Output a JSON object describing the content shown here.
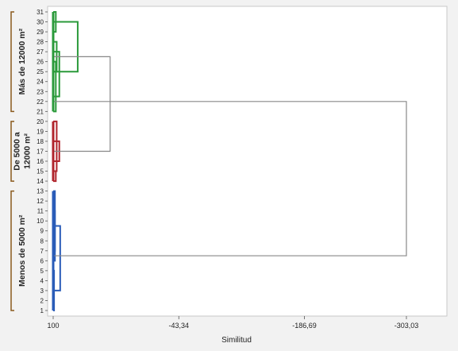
{
  "chart_data": {
    "type": "dendrogram",
    "orientation": "horizontal",
    "xlabel": "Similitud",
    "x_ticks": [
      {
        "value": 100,
        "label": "100"
      },
      {
        "value": -43.34,
        "label": "-43,34"
      },
      {
        "value": -186.69,
        "label": "-186,69"
      },
      {
        "value": -303.03,
        "label": "-303,03"
      }
    ],
    "xlim": [
      100,
      -373
    ],
    "leaves": [
      1,
      2,
      3,
      4,
      5,
      6,
      7,
      8,
      9,
      10,
      11,
      12,
      13,
      14,
      15,
      16,
      17,
      18,
      19,
      20,
      21,
      22,
      23,
      24,
      25,
      26,
      27,
      28,
      29,
      30,
      31
    ],
    "groups": [
      {
        "lines": [
          "Más de 12000 m²"
        ],
        "from_leaf": 21,
        "to_leaf": 31,
        "color": "#2a9a3a"
      },
      {
        "lines": [
          "De 5000 a",
          "12000 m²"
        ],
        "from_leaf": 14,
        "to_leaf": 20,
        "color": "#b0242c"
      },
      {
        "lines": [
          "Menos de 5000 m²"
        ],
        "from_leaf": 1,
        "to_leaf": 13,
        "color": "#2a5cb8"
      }
    ],
    "merges": [
      {
        "leaf_a": 1,
        "leaf_b": 5,
        "similarity": 99,
        "color": "#2a5cb8"
      },
      {
        "leaf_a": 6,
        "leaf_b": 13,
        "similarity": 98,
        "color": "#2a5cb8"
      },
      {
        "leaf_a": 7,
        "leaf_b": 11,
        "similarity": 98,
        "color": "#2a5cb8"
      },
      {
        "leaf_a": 3,
        "leaf_b": 9.5,
        "similarity": 92,
        "color": "#2a5cb8"
      },
      {
        "leaf_a": 14,
        "leaf_b": 15,
        "similarity": 97,
        "color": "#b0242c"
      },
      {
        "leaf_a": 15,
        "leaf_b": 20,
        "similarity": 96,
        "color": "#b0242c"
      },
      {
        "leaf_a": 16,
        "leaf_b": 18,
        "similarity": 93,
        "color": "#b0242c"
      },
      {
        "leaf_a": 21,
        "leaf_b": 26,
        "similarity": 97,
        "color": "#2a9a3a"
      },
      {
        "leaf_a": 22.5,
        "leaf_b": 27,
        "similarity": 93,
        "color": "#2a9a3a"
      },
      {
        "leaf_a": 25,
        "leaf_b": 28,
        "similarity": 96,
        "color": "#2a9a3a"
      },
      {
        "leaf_a": 29,
        "leaf_b": 31,
        "similarity": 97,
        "color": "#2a9a3a"
      },
      {
        "leaf_a": 25,
        "leaf_b": 30,
        "similarity": 72,
        "color": "#2a9a3a"
      },
      {
        "leaf_a": 17,
        "leaf_b": 26.5,
        "similarity": 35,
        "color": "#888888"
      },
      {
        "leaf_a": 6.5,
        "leaf_b": 22,
        "similarity": -303.03,
        "color": "#888888"
      }
    ],
    "leaf_ticks": [
      {
        "from_leaf": 1,
        "to_leaf": 13,
        "color": "#2a5cb8"
      },
      {
        "from_leaf": 14,
        "to_leaf": 20,
        "color": "#b0242c"
      },
      {
        "from_leaf": 21,
        "to_leaf": 31,
        "color": "#2a9a3a"
      }
    ],
    "grid": false,
    "legend": "none"
  }
}
